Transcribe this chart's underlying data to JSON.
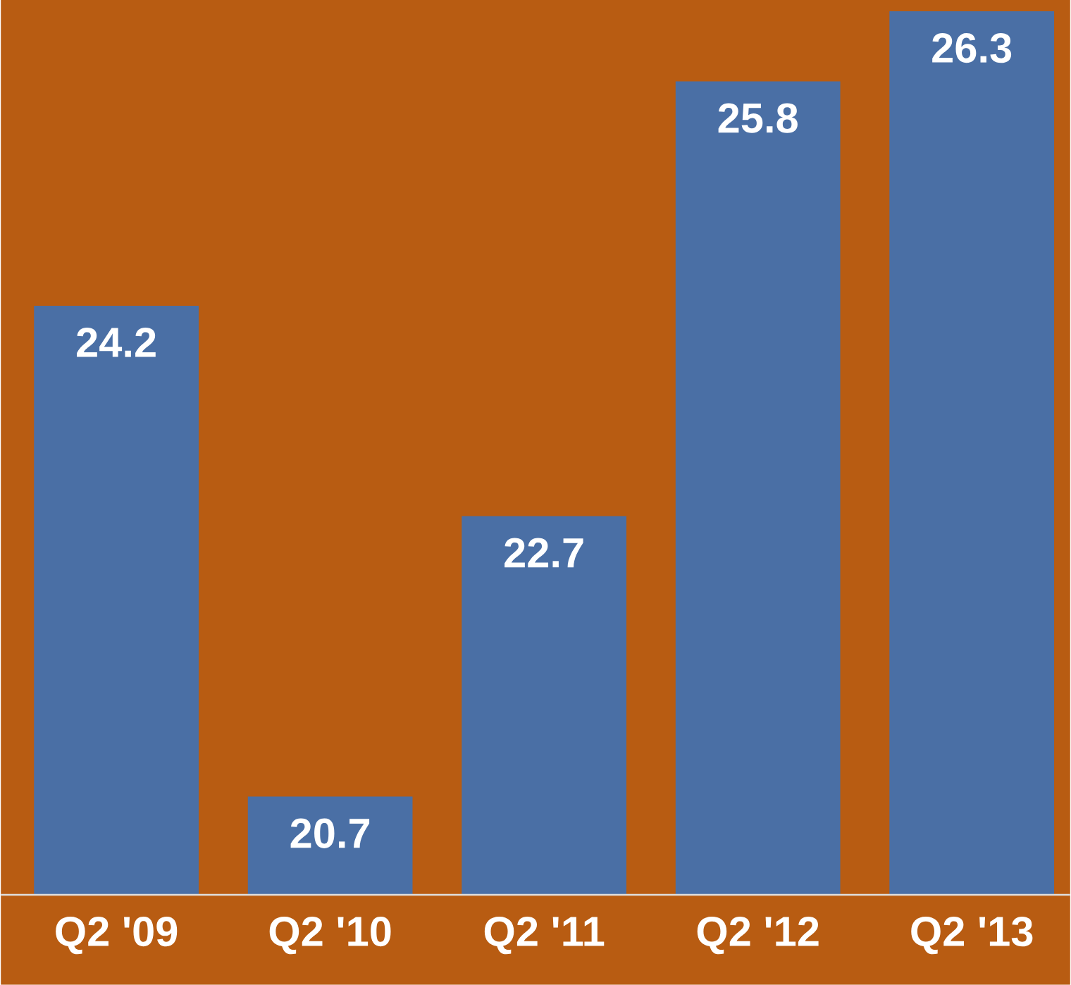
{
  "chart_data": {
    "type": "bar",
    "categories": [
      "Q2 '09",
      "Q2 '10",
      "Q2 '11",
      "Q2 '12",
      "Q2 '13"
    ],
    "values": [
      24.2,
      20.7,
      22.7,
      25.8,
      26.3
    ],
    "color": "#4a6fa5",
    "ylim": [
      20,
      26.3
    ],
    "data_labels": true
  }
}
